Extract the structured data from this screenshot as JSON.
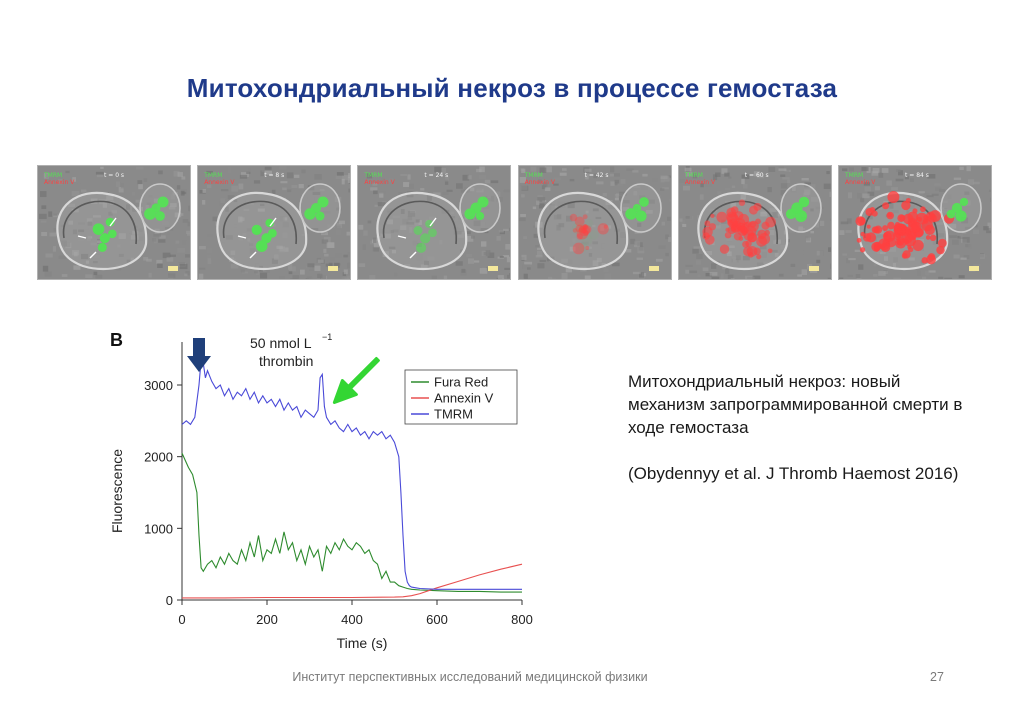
{
  "slide": {
    "title": "Митохондриальный некроз в процессе гемостаза",
    "caption": "Митохондриальный некроз: новый механизм запрограммированной смерти в ходе гемостаза",
    "reference": "(Obydennyy et al. J Thromb Haemost 2016)",
    "footer": "Институт перспективных исследований медицинской физики",
    "page_number": "27"
  },
  "image_strip": {
    "channel_labels": [
      "TMRM",
      "Annexin V"
    ],
    "colors": {
      "tmrm": "#55e055",
      "annexin": "#ff4040"
    },
    "frames": [
      {
        "time": "t = 0 s",
        "green": 1.0,
        "red": 0.0
      },
      {
        "time": "t = 8 s",
        "green": 1.0,
        "red": 0.0
      },
      {
        "time": "t = 24 s",
        "green": 0.6,
        "red": 0.0
      },
      {
        "time": "t = 42 s",
        "green": 0.05,
        "red": 0.15
      },
      {
        "time": "t = 60 s",
        "green": 0.0,
        "red": 0.6
      },
      {
        "time": "t = 84 s",
        "green": 0.0,
        "red": 1.0
      }
    ]
  },
  "chart_data": {
    "type": "line",
    "panel_label": "B",
    "xlabel": "Time (s)",
    "ylabel": "Fluorescence",
    "xlim": [
      0,
      800
    ],
    "ylim": [
      0,
      3600
    ],
    "xticks": [
      0,
      200,
      400,
      600,
      800
    ],
    "yticks": [
      0,
      1000,
      2000,
      3000
    ],
    "legend_position": "top-right",
    "annotation": {
      "line1": "50 nmol L",
      "superscript": "−1",
      "line2": "thrombin",
      "x": 40
    },
    "green_arrow_target": {
      "x": 335,
      "y": 2700
    },
    "series": [
      {
        "name": "Fura Red",
        "color": "#2e8b2e",
        "x": [
          0,
          15,
          25,
          35,
          40,
          45,
          50,
          60,
          70,
          80,
          90,
          100,
          110,
          120,
          130,
          140,
          150,
          160,
          170,
          180,
          190,
          200,
          210,
          220,
          230,
          240,
          250,
          260,
          270,
          280,
          290,
          300,
          310,
          320,
          330,
          340,
          350,
          360,
          370,
          380,
          390,
          400,
          410,
          420,
          430,
          440,
          450,
          460,
          470,
          480,
          490,
          500,
          510,
          520,
          530,
          540,
          560,
          600,
          650,
          700,
          750,
          800
        ],
        "y": [
          2050,
          1850,
          1750,
          1500,
          900,
          450,
          400,
          500,
          550,
          450,
          600,
          500,
          650,
          550,
          500,
          700,
          550,
          800,
          600,
          900,
          550,
          700,
          650,
          850,
          650,
          950,
          700,
          800,
          550,
          700,
          500,
          750,
          600,
          700,
          400,
          750,
          650,
          800,
          700,
          850,
          750,
          700,
          800,
          750,
          650,
          700,
          550,
          500,
          300,
          400,
          250,
          250,
          200,
          180,
          160,
          150,
          140,
          130,
          120,
          120,
          110,
          110
        ]
      },
      {
        "name": "Annexin V",
        "color": "#e85050",
        "x": [
          0,
          100,
          200,
          300,
          400,
          500,
          520,
          540,
          560,
          580,
          600,
          650,
          700,
          750,
          800
        ],
        "y": [
          30,
          30,
          35,
          35,
          35,
          40,
          45,
          60,
          90,
          130,
          170,
          260,
          350,
          430,
          500
        ]
      },
      {
        "name": "TMRM",
        "color": "#4a4ad8",
        "x": [
          0,
          10,
          20,
          30,
          40,
          45,
          50,
          55,
          60,
          70,
          80,
          90,
          100,
          110,
          120,
          130,
          140,
          150,
          160,
          170,
          180,
          190,
          200,
          210,
          220,
          230,
          240,
          250,
          260,
          270,
          280,
          290,
          300,
          310,
          320,
          325,
          330,
          335,
          340,
          350,
          360,
          370,
          380,
          390,
          400,
          410,
          420,
          430,
          440,
          450,
          460,
          470,
          480,
          490,
          500,
          510,
          515,
          520,
          525,
          530,
          535,
          540,
          550,
          560,
          600,
          700,
          800
        ],
        "y": [
          2450,
          2500,
          2450,
          2550,
          3000,
          3350,
          3300,
          3100,
          3200,
          3050,
          2950,
          3000,
          2850,
          2950,
          2800,
          2900,
          2850,
          2950,
          2800,
          2900,
          2750,
          2850,
          2750,
          2800,
          2700,
          2800,
          2650,
          2750,
          2650,
          2700,
          2550,
          2650,
          2600,
          2550,
          2650,
          3100,
          3150,
          2700,
          2550,
          2450,
          2500,
          2400,
          2350,
          2450,
          2350,
          2400,
          2300,
          2350,
          2250,
          2350,
          2300,
          2350,
          2250,
          2300,
          2200,
          2000,
          1500,
          900,
          400,
          250,
          200,
          180,
          170,
          160,
          150,
          150,
          150
        ]
      }
    ]
  }
}
